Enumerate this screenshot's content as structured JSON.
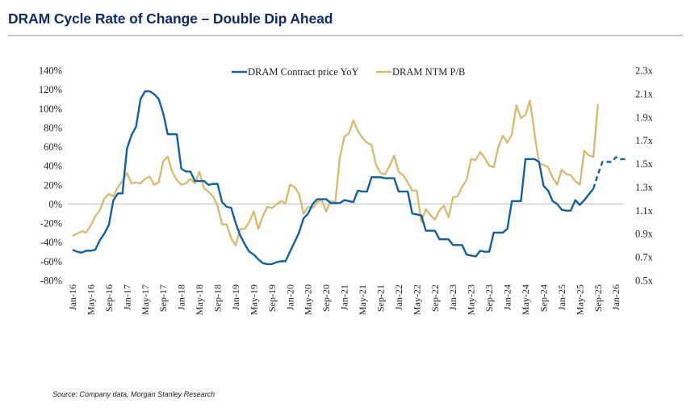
{
  "header": {
    "title": "DRAM Cycle Rate of Change – Double Dip Ahead"
  },
  "footer": {
    "source": "Source: Company data, Morgan Stanley Research"
  },
  "colors": {
    "blue": "#1060a8",
    "tan": "#d6bd72",
    "zero_line": "#d0d0d0",
    "title": "#0f2a6e"
  },
  "chart_data": {
    "type": "line",
    "title": "DRAM Cycle Rate of Change – Double Dip Ahead",
    "xlabel": "",
    "ylabel_left": "",
    "ylabel_right": "",
    "legend_position": "top-center",
    "grid": false,
    "x_start": "Jan-16",
    "x_frequency": "monthly",
    "x_tick_labels": [
      "Jan-16",
      "May-16",
      "Sep-16",
      "Jan-17",
      "May-17",
      "Sep-17",
      "Jan-18",
      "May-18",
      "Sep-18",
      "Jan-19",
      "May-19",
      "Sep-19",
      "Jan-20",
      "May-20",
      "Sep-20",
      "Jan-21",
      "May-21",
      "Sep-21",
      "Jan-22",
      "May-22",
      "Sep-22",
      "Jan-23",
      "May-23",
      "Sep-23",
      "Jan-24",
      "May-24",
      "Sep-24",
      "Jan-25",
      "May-25",
      "Sep-25",
      "Jan-26"
    ],
    "x_tick_interval_months": 4,
    "x_range_months": [
      0,
      121
    ],
    "left_axis": {
      "ylim": [
        -80,
        140
      ],
      "ticks": [
        -80,
        -60,
        -40,
        -20,
        0,
        20,
        40,
        60,
        80,
        100,
        120,
        140
      ],
      "tick_labels": [
        "-80%",
        "-60%",
        "-40%",
        "-20%",
        "0%",
        "20%",
        "40%",
        "60%",
        "80%",
        "100%",
        "120%",
        "140%"
      ]
    },
    "right_axis": {
      "ylim": [
        0.5,
        2.3
      ],
      "ticks": [
        0.5,
        0.7,
        0.9,
        1.1,
        1.3,
        1.5,
        1.7,
        1.9,
        2.1,
        2.3
      ],
      "tick_labels": [
        "0.5x",
        "0.7x",
        "0.9x",
        "1.1x",
        "1.3x",
        "1.5x",
        "1.7x",
        "1.9x",
        "2.1x",
        "2.3x"
      ]
    },
    "reference_line": {
      "axis": "left",
      "value": 0
    },
    "series": [
      {
        "name": "DRAM Contract price YoY",
        "axis": "left",
        "unit": "%",
        "color": "#1060a8",
        "forecast_start_index": 115,
        "values": [
          -48,
          -50,
          -51,
          -49,
          -49,
          -48,
          -38,
          -31,
          -22,
          4,
          11,
          11,
          58,
          72,
          81,
          110,
          118,
          118,
          115,
          110,
          95,
          73,
          73,
          73,
          37,
          34,
          34,
          24,
          24,
          24,
          20,
          21,
          21,
          2,
          -3,
          -4,
          -20,
          -33,
          -42,
          -50,
          -53,
          -58,
          -62,
          -63,
          -63,
          -61,
          -60,
          -60,
          -50,
          -40,
          -30,
          -15,
          -10,
          0,
          5,
          5,
          5,
          1,
          1,
          1,
          4,
          3,
          2,
          14,
          13,
          13,
          28,
          28,
          28,
          27,
          27,
          27,
          13,
          13,
          13,
          -10,
          -11,
          -12,
          -28,
          -28,
          -28,
          -37,
          -37,
          -37,
          -43,
          -43,
          -43,
          -53,
          -54,
          -55,
          -49,
          -50,
          -50,
          -30,
          -30,
          -30,
          -26,
          3,
          3,
          3,
          47,
          47,
          47,
          44,
          19,
          14,
          3,
          0,
          -6,
          -7,
          -7,
          4,
          -1,
          4,
          10,
          16,
          31,
          44,
          44,
          44,
          49,
          47,
          47
        ]
      },
      {
        "name": "DRAM NTM P/B",
        "axis": "right",
        "unit": "x",
        "color": "#d6bd72",
        "values": [
          0.88,
          0.9,
          0.92,
          0.91,
          0.97,
          1.05,
          1.1,
          1.2,
          1.24,
          1.22,
          1.3,
          1.35,
          1.42,
          1.33,
          1.34,
          1.33,
          1.37,
          1.39,
          1.32,
          1.34,
          1.52,
          1.56,
          1.43,
          1.36,
          1.32,
          1.33,
          1.37,
          1.33,
          1.43,
          1.29,
          1.26,
          1.22,
          1.14,
          0.98,
          0.98,
          0.86,
          0.8,
          0.94,
          0.94,
          1.0,
          1.09,
          0.94,
          1.05,
          1.13,
          1.12,
          1.15,
          1.18,
          1.16,
          1.32,
          1.3,
          1.24,
          1.07,
          1.13,
          1.12,
          1.17,
          1.19,
          1.09,
          1.18,
          1.17,
          1.55,
          1.73,
          1.76,
          1.87,
          1.78,
          1.72,
          1.68,
          1.66,
          1.49,
          1.42,
          1.41,
          1.48,
          1.57,
          1.43,
          1.4,
          1.34,
          1.27,
          1.27,
          1.0,
          1.11,
          1.06,
          1.02,
          1.1,
          1.14,
          1.04,
          1.21,
          1.22,
          1.3,
          1.36,
          1.54,
          1.53,
          1.6,
          1.55,
          1.48,
          1.47,
          1.64,
          1.74,
          1.68,
          1.75,
          2.0,
          1.89,
          1.92,
          2.04,
          1.76,
          1.5,
          1.49,
          1.47,
          1.38,
          1.32,
          1.45,
          1.41,
          1.4,
          1.35,
          1.32,
          1.61,
          1.57,
          1.56,
          2.01
        ]
      }
    ]
  }
}
